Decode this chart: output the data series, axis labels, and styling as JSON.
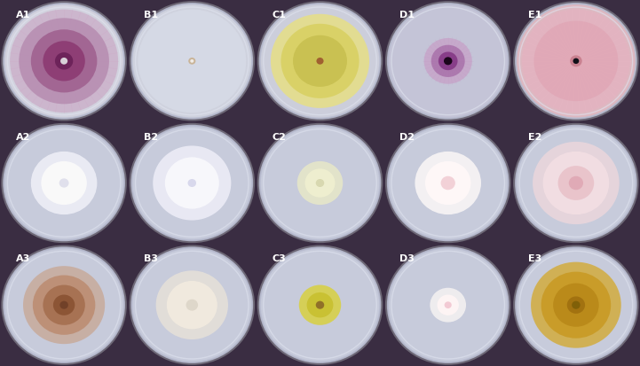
{
  "background_color": "#3a2d42",
  "figsize": [
    7.21,
    4.13
  ],
  "dpi": 100,
  "grid_rows": 3,
  "grid_cols": 5,
  "labels": [
    [
      "A1",
      "B1",
      "C1",
      "D1",
      "E1"
    ],
    [
      "A2",
      "B2",
      "C2",
      "D2",
      "E2"
    ],
    [
      "A3",
      "B3",
      "C3",
      "D3",
      "E3"
    ]
  ],
  "dishes": {
    "A1": {
      "plate_color": "#dcdce8",
      "colony": {
        "type": "radial_gradient",
        "layers": [
          {
            "r": 0.9,
            "color": "#c8a0c0",
            "alpha": 0.55
          },
          {
            "r": 0.75,
            "color": "#b080a8",
            "alpha": 0.65
          },
          {
            "r": 0.55,
            "color": "#9b5888",
            "alpha": 0.75
          },
          {
            "r": 0.35,
            "color": "#8b3870",
            "alpha": 0.85
          },
          {
            "r": 0.15,
            "color": "#6a2058",
            "alpha": 0.9
          },
          {
            "r": 0.06,
            "color": "#d8d0d8",
            "alpha": 1.0
          }
        ],
        "n_radial": 40,
        "radial_color": "#d0a0c8",
        "radial_alpha": 0.25,
        "radial_max_r": 0.9
      }
    },
    "B1": {
      "plate_color": "#d8dce8",
      "colony": {
        "type": "simple",
        "layers": [
          {
            "r": 0.9,
            "color": "#d8dce8",
            "alpha": 0.7
          },
          {
            "r": 0.06,
            "color": "#c8b090",
            "alpha": 0.9
          },
          {
            "r": 0.03,
            "color": "#f0ece8",
            "alpha": 1.0
          }
        ],
        "n_radial": 0
      }
    },
    "C1": {
      "plate_color": "#d5d8e5",
      "colony": {
        "type": "simple",
        "layers": [
          {
            "r": 0.82,
            "color": "#e8e080",
            "alpha": 0.8
          },
          {
            "r": 0.65,
            "color": "#d8d060",
            "alpha": 0.85
          },
          {
            "r": 0.45,
            "color": "#c8c050",
            "alpha": 0.9
          },
          {
            "r": 0.06,
            "color": "#a06030",
            "alpha": 1.0
          }
        ],
        "n_radial": 0
      }
    },
    "D1": {
      "plate_color": "#cccde0",
      "colony": {
        "type": "radial_gradient",
        "layers": [
          {
            "r": 0.4,
            "color": "#c890c0",
            "alpha": 0.5
          },
          {
            "r": 0.28,
            "color": "#a060a0",
            "alpha": 0.65
          },
          {
            "r": 0.16,
            "color": "#803080",
            "alpha": 0.8
          },
          {
            "r": 0.07,
            "color": "#1a051a",
            "alpha": 1.0
          }
        ],
        "n_radial": 36,
        "radial_color": "#c0a0c8",
        "radial_alpha": 0.2,
        "radial_max_r": 0.42
      }
    },
    "E1": {
      "plate_color": "#e8c0c8",
      "colony": {
        "type": "radial_gradient",
        "layers": [
          {
            "r": 0.9,
            "color": "#e8b0c0",
            "alpha": 0.5
          },
          {
            "r": 0.7,
            "color": "#e0a0b0",
            "alpha": 0.55
          },
          {
            "r": 0.1,
            "color": "#c07080",
            "alpha": 0.7
          },
          {
            "r": 0.05,
            "color": "#101018",
            "alpha": 1.0
          }
        ],
        "n_radial": 50,
        "radial_color": "#e8c0d0",
        "radial_alpha": 0.35,
        "radial_max_r": 0.9
      }
    },
    "A2": {
      "plate_color": "#d0d4e4",
      "colony": {
        "type": "simple",
        "layers": [
          {
            "r": 0.55,
            "color": "#f0f0f8",
            "alpha": 0.85
          },
          {
            "r": 0.38,
            "color": "#fafafa",
            "alpha": 0.95
          },
          {
            "r": 0.08,
            "color": "#e0e0ec",
            "alpha": 1.0
          }
        ],
        "n_radial": 0
      }
    },
    "B2": {
      "plate_color": "#d0d4e4",
      "colony": {
        "type": "simple",
        "layers": [
          {
            "r": 0.65,
            "color": "#eeeef8",
            "alpha": 0.85
          },
          {
            "r": 0.45,
            "color": "#f8f8fc",
            "alpha": 0.95
          },
          {
            "r": 0.07,
            "color": "#d8d8ec",
            "alpha": 1.0
          }
        ],
        "n_radial": 0
      }
    },
    "C2": {
      "plate_color": "#d0d4e4",
      "colony": {
        "type": "simple",
        "layers": [
          {
            "r": 0.38,
            "color": "#e8e8c8",
            "alpha": 0.85
          },
          {
            "r": 0.25,
            "color": "#f0f0d0",
            "alpha": 0.9
          },
          {
            "r": 0.07,
            "color": "#d8d8b0",
            "alpha": 1.0
          }
        ],
        "n_radial": 0
      }
    },
    "D2": {
      "plate_color": "#d0d4e4",
      "colony": {
        "type": "simple",
        "layers": [
          {
            "r": 0.55,
            "color": "#f8f5f5",
            "alpha": 0.9
          },
          {
            "r": 0.38,
            "color": "#fff8f8",
            "alpha": 0.95
          },
          {
            "r": 0.12,
            "color": "#f0c8d0",
            "alpha": 0.8
          }
        ],
        "n_radial": 0
      }
    },
    "E2": {
      "plate_color": "#d0d4e4",
      "colony": {
        "type": "simple",
        "layers": [
          {
            "r": 0.72,
            "color": "#f0d8dc",
            "alpha": 0.75
          },
          {
            "r": 0.55,
            "color": "#f5e0e4",
            "alpha": 0.8
          },
          {
            "r": 0.3,
            "color": "#e8c0c8",
            "alpha": 0.85
          },
          {
            "r": 0.12,
            "color": "#e0a8b4",
            "alpha": 0.9
          }
        ],
        "n_radial": 0
      }
    },
    "A3": {
      "plate_color": "#d0d4e4",
      "colony": {
        "type": "simple",
        "layers": [
          {
            "r": 0.68,
            "color": "#c89878",
            "alpha": 0.55
          },
          {
            "r": 0.52,
            "color": "#b88060",
            "alpha": 0.65
          },
          {
            "r": 0.35,
            "color": "#a06848",
            "alpha": 0.75
          },
          {
            "r": 0.18,
            "color": "#885030",
            "alpha": 0.85
          },
          {
            "r": 0.07,
            "color": "#704028",
            "alpha": 0.95
          }
        ],
        "n_radial": 0
      }
    },
    "B3": {
      "plate_color": "#d0d4e4",
      "colony": {
        "type": "simple",
        "layers": [
          {
            "r": 0.6,
            "color": "#ede5d8",
            "alpha": 0.7
          },
          {
            "r": 0.42,
            "color": "#f5ede0",
            "alpha": 0.8
          },
          {
            "r": 0.1,
            "color": "#ddd5c8",
            "alpha": 0.9
          }
        ],
        "n_radial": 0
      }
    },
    "C3": {
      "plate_color": "#d0d4e4",
      "colony": {
        "type": "simple",
        "layers": [
          {
            "r": 0.35,
            "color": "#d8d040",
            "alpha": 0.85
          },
          {
            "r": 0.22,
            "color": "#c8c030",
            "alpha": 0.9
          },
          {
            "r": 0.07,
            "color": "#907028",
            "alpha": 1.0
          }
        ],
        "n_radial": 0
      }
    },
    "D3": {
      "plate_color": "#d0d4e4",
      "colony": {
        "type": "simple",
        "layers": [
          {
            "r": 0.3,
            "color": "#f5f2f2",
            "alpha": 0.85
          },
          {
            "r": 0.18,
            "color": "#fff5f5",
            "alpha": 0.9
          },
          {
            "r": 0.06,
            "color": "#f0c0cc",
            "alpha": 0.8
          }
        ],
        "n_radial": 0
      }
    },
    "E3": {
      "plate_color": "#d0d4e4",
      "colony": {
        "type": "simple",
        "layers": [
          {
            "r": 0.75,
            "color": "#d4a828",
            "alpha": 0.75
          },
          {
            "r": 0.58,
            "color": "#c89820",
            "alpha": 0.82
          },
          {
            "r": 0.38,
            "color": "#b88818",
            "alpha": 0.88
          },
          {
            "r": 0.15,
            "color": "#a07010",
            "alpha": 0.92
          },
          {
            "r": 0.07,
            "color": "#806008",
            "alpha": 1.0
          }
        ],
        "n_radial": 0
      }
    }
  },
  "label_color": "white",
  "label_fontsize": 8,
  "label_fontweight": "bold"
}
